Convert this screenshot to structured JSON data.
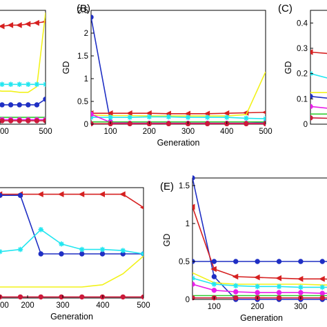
{
  "figure": {
    "panels": [
      {
        "id": "A",
        "label": ""
      },
      {
        "id": "B",
        "label": "(B)"
      },
      {
        "id": "C",
        "label": "(C)"
      },
      {
        "id": "D",
        "label": ""
      },
      {
        "id": "E",
        "label": "(E)"
      }
    ]
  },
  "colors": {
    "red": "#d62020",
    "yellow": "#f2f21a",
    "cyan": "#22e6f0",
    "blue": "#1f2fc4",
    "magenta": "#e81ee8",
    "green": "#2ecc2e",
    "black": "#111111",
    "crimson": "#cc1a3a"
  },
  "chart_data": [
    {
      "panel": "A",
      "type": "line",
      "xlabel": "",
      "ylabel": "",
      "xticks": [
        "00",
        "500"
      ],
      "yticks": [],
      "xlim": [
        0,
        500
      ],
      "ylim": [
        0,
        1
      ],
      "x": [
        50,
        100,
        150,
        200,
        250,
        300,
        350,
        400,
        450,
        500
      ],
      "series": [
        {
          "color": "red",
          "marker": "triangle-left",
          "values": [
            0.88,
            0.87,
            0.86,
            0.86,
            0.86,
            0.87,
            0.87,
            0.88,
            0.89,
            0.9
          ]
        },
        {
          "color": "yellow",
          "marker": "none",
          "values": [
            0.32,
            0.31,
            0.3,
            0.3,
            0.29,
            0.29,
            0.28,
            0.28,
            0.33,
            0.98
          ]
        },
        {
          "color": "cyan",
          "marker": "star",
          "values": [
            0.35,
            0.35,
            0.35,
            0.35,
            0.35,
            0.35,
            0.35,
            0.35,
            0.35,
            0.35
          ]
        },
        {
          "color": "blue",
          "marker": "circle",
          "values": [
            0.17,
            0.17,
            0.17,
            0.17,
            0.17,
            0.17,
            0.17,
            0.17,
            0.17,
            0.22
          ]
        },
        {
          "color": "green",
          "marker": "none",
          "values": [
            0.06,
            0.06,
            0.06,
            0.06,
            0.06,
            0.06,
            0.06,
            0.06,
            0.06,
            0.06
          ]
        },
        {
          "color": "magenta",
          "marker": "circle",
          "values": [
            0.04,
            0.04,
            0.04,
            0.04,
            0.04,
            0.04,
            0.04,
            0.04,
            0.04,
            0.04
          ]
        },
        {
          "color": "crimson",
          "marker": "circle",
          "values": [
            0.03,
            0.03,
            0.03,
            0.03,
            0.03,
            0.03,
            0.03,
            0.03,
            0.03,
            0.03
          ]
        }
      ]
    },
    {
      "panel": "B",
      "type": "line",
      "xlabel": "Generation",
      "ylabel": "GD",
      "xticks": [
        "100",
        "200",
        "300",
        "400",
        "500"
      ],
      "yticks": [
        "0",
        "0.5",
        "1",
        "1.5",
        "2",
        "2.5"
      ],
      "xlim": [
        50,
        500
      ],
      "ylim": [
        0,
        2.5
      ],
      "x": [
        50,
        100,
        150,
        200,
        250,
        300,
        350,
        400,
        450,
        500
      ],
      "series": [
        {
          "color": "blue",
          "marker": "circle",
          "values": [
            2.35,
            0.05,
            0.02,
            0.02,
            0.02,
            0.02,
            0.02,
            0.02,
            0.02,
            0.03
          ]
        },
        {
          "color": "red",
          "marker": "triangle-left",
          "values": [
            0.24,
            0.24,
            0.24,
            0.24,
            0.23,
            0.23,
            0.23,
            0.24,
            0.25,
            0.26
          ]
        },
        {
          "color": "yellow",
          "marker": "none",
          "values": [
            0.2,
            0.19,
            0.19,
            0.18,
            0.18,
            0.18,
            0.18,
            0.18,
            0.21,
            1.15
          ]
        },
        {
          "color": "cyan",
          "marker": "star",
          "values": [
            0.15,
            0.15,
            0.15,
            0.16,
            0.16,
            0.15,
            0.15,
            0.15,
            0.13,
            0.12
          ]
        },
        {
          "color": "magenta",
          "marker": "circle",
          "values": [
            0.22,
            0.04,
            0.02,
            0.02,
            0.02,
            0.02,
            0.02,
            0.02,
            0.02,
            0.02
          ]
        },
        {
          "color": "green",
          "marker": "none",
          "values": [
            0.05,
            0.05,
            0.05,
            0.05,
            0.05,
            0.05,
            0.05,
            0.05,
            0.05,
            0.05
          ]
        },
        {
          "color": "crimson",
          "marker": "circle",
          "values": [
            0.01,
            0.01,
            0.01,
            0.01,
            0.01,
            0.01,
            0.01,
            0.01,
            0.01,
            0.01
          ]
        }
      ]
    },
    {
      "panel": "C",
      "type": "line",
      "xlabel": "",
      "ylabel": "GD",
      "xticks": [],
      "yticks": [
        "0",
        "0.1",
        "0.2",
        "0.3",
        "0.4"
      ],
      "xlim": [
        50,
        100
      ],
      "ylim": [
        0,
        0.45
      ],
      "x": [
        50,
        100
      ],
      "series": [
        {
          "color": "red",
          "marker": "triangle-left",
          "values": [
            0.285,
            0.27
          ]
        },
        {
          "color": "cyan",
          "marker": "star",
          "values": [
            0.2,
            0.15
          ]
        },
        {
          "color": "yellow",
          "marker": "none",
          "values": [
            0.125,
            0.125
          ]
        },
        {
          "color": "blue",
          "marker": "circle",
          "values": [
            0.11,
            0.09
          ]
        },
        {
          "color": "magenta",
          "marker": "circle",
          "values": [
            0.07,
            0.05
          ]
        },
        {
          "color": "green",
          "marker": "none",
          "values": [
            0.04,
            0.04
          ]
        },
        {
          "color": "crimson",
          "marker": "circle",
          "values": [
            0.025,
            0.02
          ]
        }
      ]
    },
    {
      "panel": "D",
      "type": "line",
      "xlabel": "Generation",
      "ylabel": "",
      "xticks": [
        "00",
        "200",
        "300",
        "400",
        "500"
      ],
      "yticks": [],
      "xlim": [
        100,
        500
      ],
      "ylim": [
        0,
        1
      ],
      "x": [
        100,
        150,
        200,
        250,
        300,
        350,
        400,
        450,
        500
      ],
      "series": [
        {
          "color": "red",
          "marker": "triangle-left",
          "values": [
            0.94,
            0.94,
            0.94,
            0.94,
            0.94,
            0.94,
            0.94,
            0.94,
            0.82
          ]
        },
        {
          "color": "blue",
          "marker": "circle",
          "values": [
            0.93,
            0.93,
            0.93,
            0.4,
            0.4,
            0.4,
            0.4,
            0.4,
            0.4
          ]
        },
        {
          "color": "cyan",
          "marker": "star",
          "values": [
            0.42,
            0.42,
            0.44,
            0.62,
            0.49,
            0.44,
            0.44,
            0.43,
            0.4
          ]
        },
        {
          "color": "yellow",
          "marker": "none",
          "values": [
            0.1,
            0.1,
            0.1,
            0.1,
            0.1,
            0.1,
            0.12,
            0.22,
            0.38
          ]
        },
        {
          "color": "crimson",
          "marker": "circle",
          "values": [
            0.01,
            0.01,
            0.01,
            0.01,
            0.01,
            0.01,
            0.01,
            0.01,
            0.01
          ]
        }
      ]
    },
    {
      "panel": "E",
      "type": "line",
      "xlabel": "Generation",
      "ylabel": "GD",
      "xticks": [
        "100",
        "200",
        "300",
        "400"
      ],
      "yticks": [
        "0",
        "0.5",
        "1",
        "1.5"
      ],
      "xlim": [
        50,
        450
      ],
      "ylim": [
        0,
        1.6
      ],
      "x": [
        50,
        100,
        150,
        200,
        250,
        300,
        350,
        400,
        450
      ],
      "series": [
        {
          "color": "blue",
          "marker": "circle",
          "values": [
            1.6,
            0.3,
            0.0,
            0.0,
            0.0,
            0.0,
            0.0,
            0.0,
            0.0
          ]
        },
        {
          "color": "red",
          "marker": "triangle-left",
          "values": [
            1.22,
            0.4,
            0.3,
            0.29,
            0.28,
            0.27,
            0.27,
            0.26,
            0.26
          ]
        },
        {
          "color": "blue",
          "marker": "circle",
          "values": [
            0.5,
            0.5,
            0.5,
            0.5,
            0.5,
            0.5,
            0.5,
            0.5,
            0.5
          ]
        },
        {
          "color": "yellow",
          "marker": "none",
          "values": [
            0.35,
            0.22,
            0.2,
            0.2,
            0.2,
            0.2,
            0.19,
            0.19,
            0.19
          ]
        },
        {
          "color": "cyan",
          "marker": "star",
          "values": [
            0.28,
            0.2,
            0.18,
            0.17,
            0.17,
            0.16,
            0.16,
            0.16,
            0.15
          ]
        },
        {
          "color": "magenta",
          "marker": "circle",
          "values": [
            0.2,
            0.12,
            0.1,
            0.09,
            0.09,
            0.09,
            0.08,
            0.08,
            0.08
          ]
        },
        {
          "color": "green",
          "marker": "none",
          "values": [
            0.05,
            0.05,
            0.05,
            0.05,
            0.05,
            0.05,
            0.05,
            0.05,
            0.05
          ]
        },
        {
          "color": "crimson",
          "marker": "circle",
          "values": [
            0.02,
            0.02,
            0.02,
            0.02,
            0.02,
            0.02,
            0.02,
            0.02,
            0.02
          ]
        }
      ]
    }
  ]
}
